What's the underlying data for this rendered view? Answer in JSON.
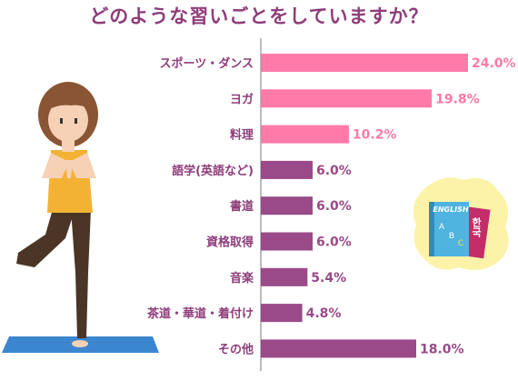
{
  "chart_data": {
    "type": "bar",
    "orientation": "horizontal",
    "title": "どのような習いごとをしていますか？",
    "categories": [
      "スポーツ・ダンス",
      "ヨガ",
      "料理",
      "語学(英語など)",
      "書道",
      "資格取得",
      "音楽",
      "茶道・華道・着付け",
      "その他"
    ],
    "values": [
      24.0,
      19.8,
      10.2,
      6.0,
      6.0,
      6.0,
      5.4,
      4.8,
      18.0
    ],
    "value_labels": [
      "24.0%",
      "19.8%",
      "10.2%",
      "6.0%",
      "6.0%",
      "6.0%",
      "5.4%",
      "4.8%",
      "18.0%"
    ],
    "xlim": [
      0,
      28
    ],
    "grid": false,
    "colors": {
      "highlight": "#ff7aa8",
      "default": "#9a4a88",
      "label": "#8e3d7a"
    },
    "highlight_count": 3
  },
  "illustration": {
    "book_text_top": "ENGLISH",
    "book_letters": [
      "A",
      "B",
      "C"
    ],
    "book_korean": "한국"
  }
}
